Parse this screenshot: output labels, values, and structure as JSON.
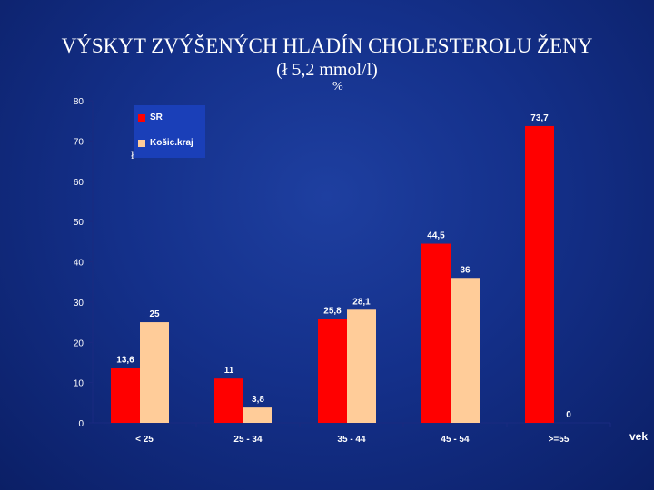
{
  "title_line1": "VÝSKYT ZVÝŠENÝCH HLADÍN CHOLESTEROLU  ŽENY",
  "title_line2": "(ł 5,2 mmol/l)",
  "y_unit": "%",
  "x_axis_title": "vek",
  "colors": {
    "sr": "#ff0000",
    "kosice": "#ffcc99",
    "axis": "#1a2a80"
  },
  "chart_data": {
    "type": "bar",
    "title": "VÝSKYT ZVÝŠENÝCH HLADÍN CHOLESTEROLU  ŽENY",
    "subtitle": "(ł 5,2 mmol/l)",
    "xlabel": "vek",
    "ylabel": "%",
    "ylim": [
      0,
      80
    ],
    "yticks": [
      0,
      10,
      20,
      30,
      40,
      50,
      60,
      70,
      80
    ],
    "grid": false,
    "legend": "top-left",
    "categories": [
      "< 25",
      "25 - 34",
      "35 - 44",
      "45 - 54",
      ">=55"
    ],
    "series": [
      {
        "name": "SR",
        "values": [
          13.6,
          11,
          25.8,
          44.5,
          73.7
        ],
        "labels": [
          "13,6",
          "11",
          "25,8",
          "44,5",
          "73,7"
        ]
      },
      {
        "name": "Košic.kraj",
        "values": [
          25,
          3.8,
          28.1,
          36,
          0
        ],
        "labels": [
          "25",
          "3,8",
          "28,1",
          "36",
          "0"
        ]
      }
    ]
  }
}
